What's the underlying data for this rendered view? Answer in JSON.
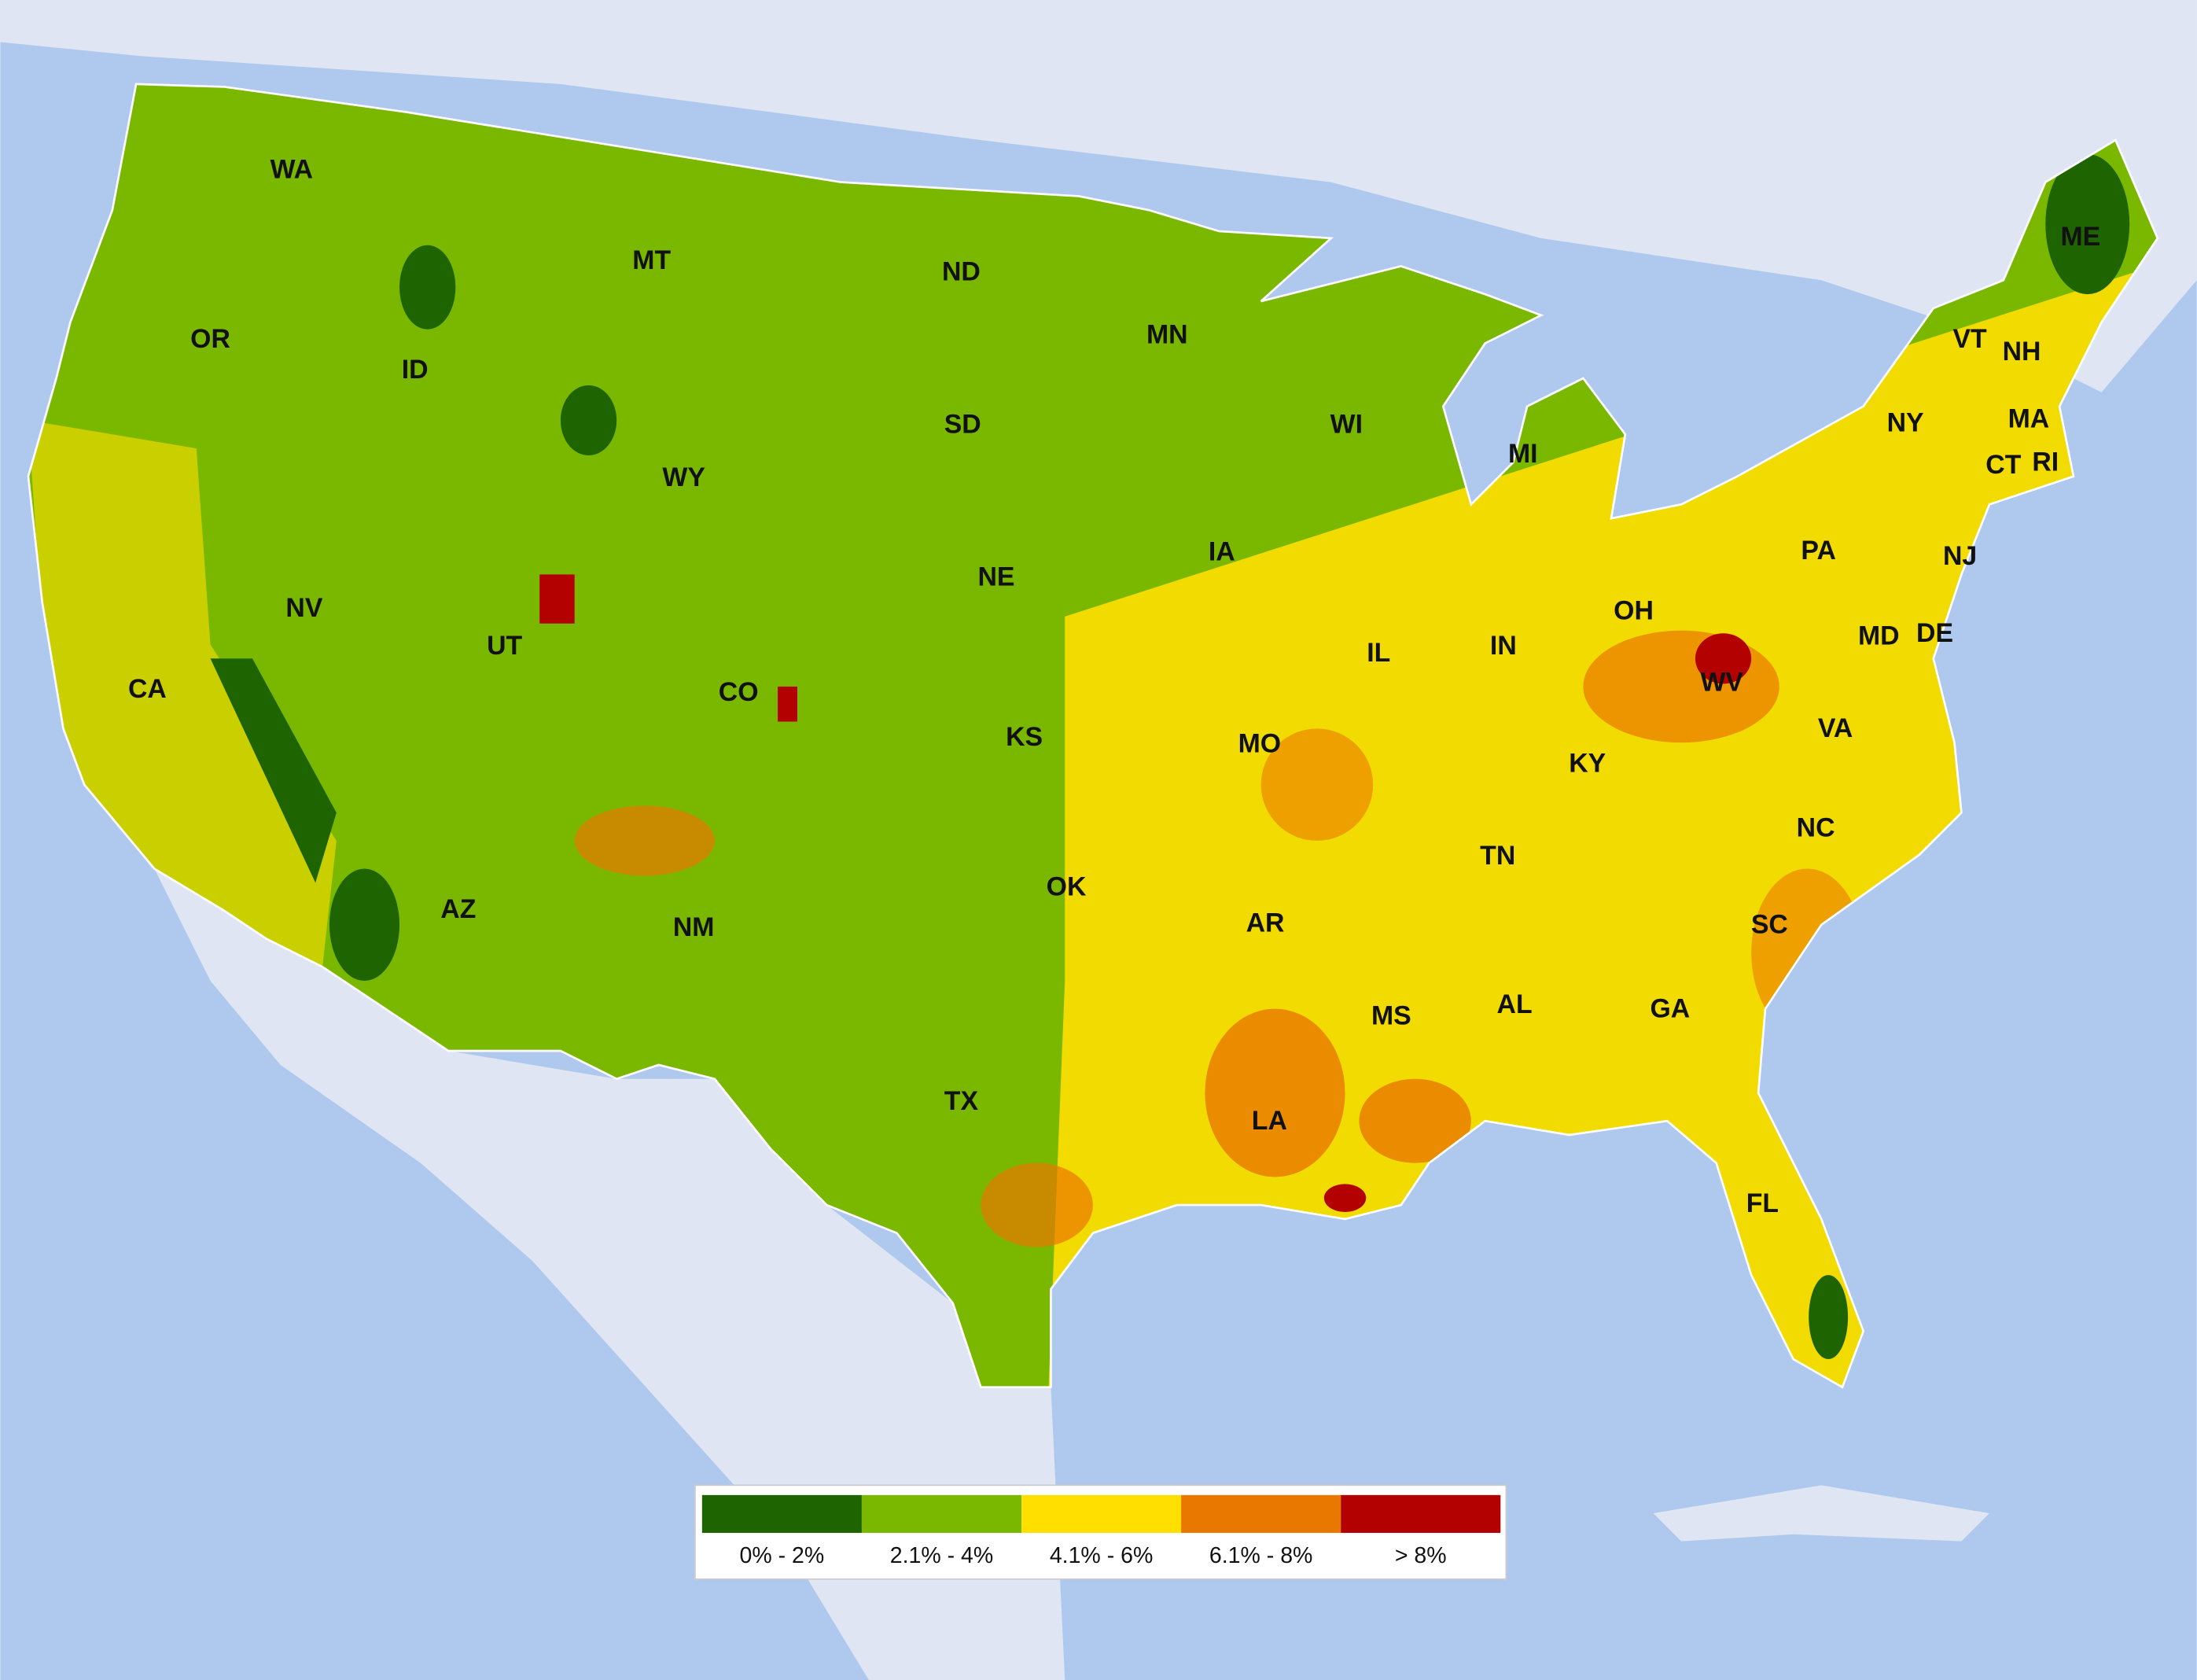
{
  "map": {
    "states": [
      "WA",
      "OR",
      "CA",
      "NV",
      "ID",
      "MT",
      "WY",
      "UT",
      "AZ",
      "CO",
      "NM",
      "ND",
      "SD",
      "NE",
      "KS",
      "OK",
      "TX",
      "MN",
      "IA",
      "MO",
      "AR",
      "LA",
      "WI",
      "IL",
      "MS",
      "MI",
      "IN",
      "OH",
      "KY",
      "TN",
      "AL",
      "GA",
      "FL",
      "SC",
      "NC",
      "VA",
      "WV",
      "PA",
      "NY",
      "NJ",
      "MD",
      "DE",
      "VT",
      "NH",
      "MA",
      "CT",
      "RI",
      "ME"
    ],
    "legend": [
      {
        "label": "0% - 2%",
        "color": "#1e6400"
      },
      {
        "label": "2.1% - 4%",
        "color": "#7ab800"
      },
      {
        "label": "4.1% - 6%",
        "color": "#ffdf00"
      },
      {
        "label": "6.1% - 8%",
        "color": "#e97800"
      },
      {
        "label": "> 8%",
        "color": "#b30000"
      }
    ]
  }
}
